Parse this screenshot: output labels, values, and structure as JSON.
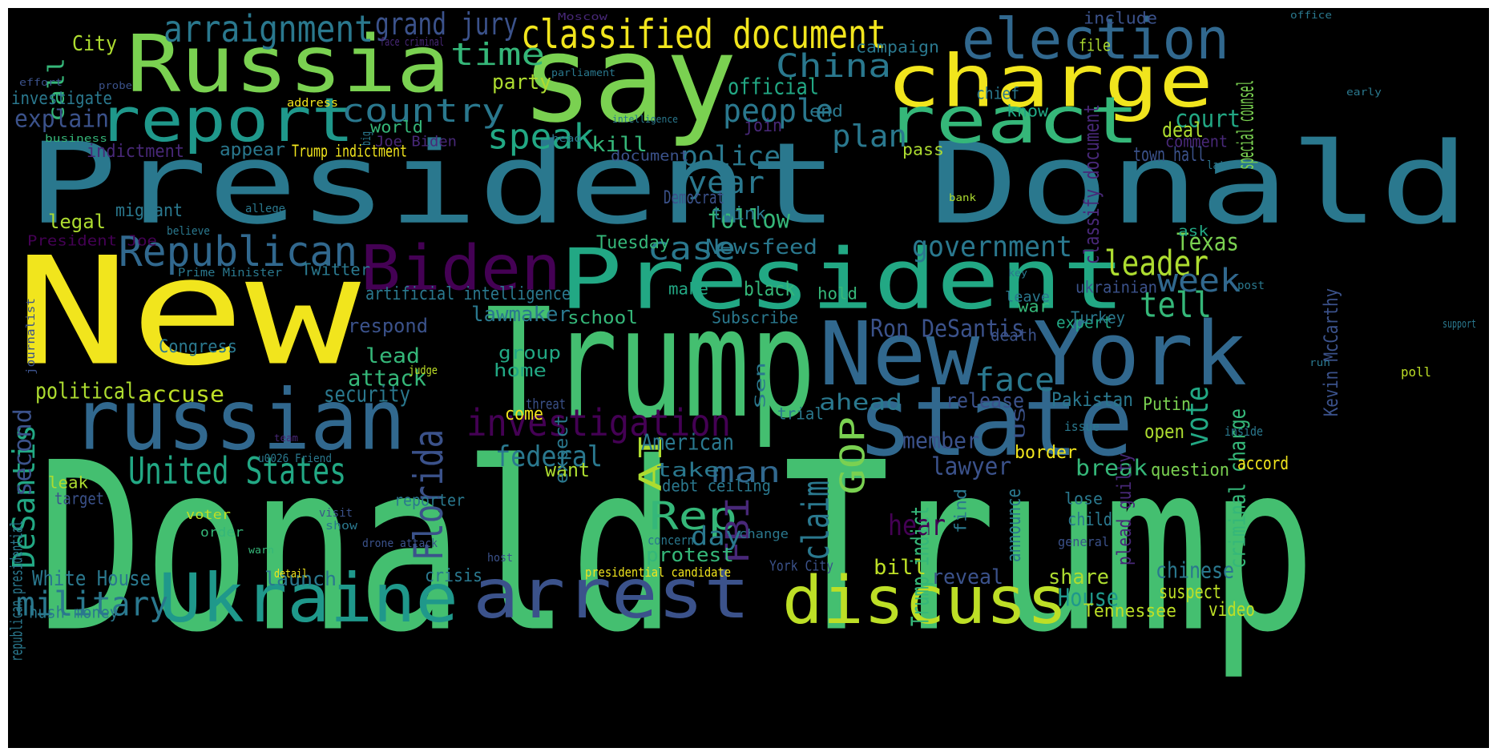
{
  "background": "#000000",
  "palette": {
    "yellow": "#f1e51d",
    "lime": "#addc30",
    "lightgreen": "#7ad151",
    "green": "#44bf70",
    "seagreen": "#35b779",
    "teal": "#22a884",
    "cyan": "#1f988b",
    "blue": "#2a788e",
    "steelblue": "#31688e",
    "indigo": "#3b528b",
    "slate": "#414487",
    "purple": "#440154",
    "violet": "#482878"
  },
  "words": [
    {
      "text": "New",
      "color": "#f1e51d"
    },
    {
      "text": "President Donald",
      "color": "#2a788e"
    },
    {
      "text": "Donald Trump",
      "color": "#44bf70"
    },
    {
      "text": "say",
      "color": "#7ad151"
    },
    {
      "text": "Trump",
      "color": "#44bf70"
    },
    {
      "text": "Russia",
      "color": "#7ad151"
    },
    {
      "text": "President",
      "color": "#22a884"
    },
    {
      "text": "charge",
      "color": "#f1e51d"
    },
    {
      "text": "New York",
      "color": "#31688e"
    },
    {
      "text": "state",
      "color": "#31688e"
    },
    {
      "text": "russian",
      "color": "#31688e"
    },
    {
      "text": "arrest",
      "color": "#3b528b"
    },
    {
      "text": "Ukraine",
      "color": "#1f988b"
    },
    {
      "text": "discuss",
      "color": "#bddf26"
    },
    {
      "text": "react",
      "color": "#35b779"
    },
    {
      "text": "report",
      "color": "#1f988b"
    },
    {
      "text": "election",
      "color": "#31688e"
    },
    {
      "text": "Biden",
      "color": "#440154"
    },
    {
      "text": "classified document",
      "color": "#f1e51d"
    },
    {
      "text": "arraignment",
      "color": "#2a788e"
    },
    {
      "text": "grand jury",
      "color": "#3b528b"
    },
    {
      "text": "time",
      "color": "#35b779"
    },
    {
      "text": "China",
      "color": "#2a788e"
    },
    {
      "text": "Republican",
      "color": "#31688e"
    },
    {
      "text": "country",
      "color": "#2a788e"
    },
    {
      "text": "speak",
      "color": "#22a884"
    },
    {
      "text": "people",
      "color": "#2a788e"
    },
    {
      "text": "official",
      "color": "#22a884"
    },
    {
      "text": "investigation",
      "color": "#440154"
    },
    {
      "text": "Florida",
      "color": "#3b528b"
    },
    {
      "text": "United States",
      "color": "#22a884"
    },
    {
      "text": "military",
      "color": "#2a788e"
    },
    {
      "text": "federal",
      "color": "#2a788e"
    },
    {
      "text": "government",
      "color": "#2a788e"
    },
    {
      "text": "leader",
      "color": "#addc30"
    },
    {
      "text": "week",
      "color": "#31688e"
    },
    {
      "text": "tell",
      "color": "#35b779"
    },
    {
      "text": "face",
      "color": "#2a788e"
    },
    {
      "text": "vote",
      "color": "#22a884"
    },
    {
      "text": "Rep",
      "color": "#35b779"
    },
    {
      "text": "claim",
      "color": "#2a788e"
    },
    {
      "text": "FBI",
      "color": "#482878"
    },
    {
      "text": "GOP",
      "color": "#7ad151"
    },
    {
      "text": "AI",
      "color": "#addc30"
    },
    {
      "text": "man",
      "color": "#31688e"
    },
    {
      "text": "case",
      "color": "#2a788e"
    },
    {
      "text": "year",
      "color": "#2a788e"
    },
    {
      "text": "police",
      "color": "#2a788e"
    },
    {
      "text": "follow",
      "color": "#35b779"
    },
    {
      "text": "plan",
      "color": "#2a788e"
    },
    {
      "text": "call",
      "color": "#35b779"
    },
    {
      "text": "City",
      "color": "#addc30"
    },
    {
      "text": "explain",
      "color": "#3b528b"
    },
    {
      "text": "investigate",
      "color": "#2a788e"
    },
    {
      "text": "indictment",
      "color": "#482878"
    },
    {
      "text": "appear",
      "color": "#2a788e"
    },
    {
      "text": "Trump indictment",
      "color": "#f1e51d"
    },
    {
      "text": "Joe Biden",
      "color": "#482878"
    },
    {
      "text": "world",
      "color": "#35b779"
    },
    {
      "text": "party",
      "color": "#addc30"
    },
    {
      "text": "kill",
      "color": "#35b779"
    },
    {
      "text": "Newsfeed",
      "color": "#2a788e"
    },
    {
      "text": "Texas",
      "color": "#7ad151"
    },
    {
      "text": "court",
      "color": "#22a884"
    },
    {
      "text": "deal",
      "color": "#addc30"
    },
    {
      "text": "special counsel",
      "color": "#7ad151"
    },
    {
      "text": "town hall",
      "color": "#3b528b"
    },
    {
      "text": "comment",
      "color": "#482878"
    },
    {
      "text": "classify document",
      "color": "#482878"
    },
    {
      "text": "criminal charge",
      "color": "#35b779"
    },
    {
      "text": "Ron DeSantis",
      "color": "#3b528b"
    },
    {
      "text": "ahead",
      "color": "#2a788e"
    },
    {
      "text": "release",
      "color": "#3b528b"
    },
    {
      "text": "Pakistan",
      "color": "#2a788e"
    },
    {
      "text": "Putin",
      "color": "#7ad151"
    },
    {
      "text": "open",
      "color": "#addc30"
    },
    {
      "text": "question",
      "color": "#7ad151"
    },
    {
      "text": "break",
      "color": "#35b779"
    },
    {
      "text": "lawyer",
      "color": "#3b528b"
    },
    {
      "text": "member",
      "color": "#3b528b"
    },
    {
      "text": "American",
      "color": "#2a788e"
    },
    {
      "text": "take",
      "color": "#2a788e"
    },
    {
      "text": "debt ceiling",
      "color": "#2a788e"
    },
    {
      "text": "want",
      "color": "#addc30"
    },
    {
      "text": "lead",
      "color": "#35b779"
    },
    {
      "text": "attack",
      "color": "#35b779"
    },
    {
      "text": "security",
      "color": "#2a788e"
    },
    {
      "text": "accuse",
      "color": "#bddf26"
    },
    {
      "text": "political",
      "color": "#addc30"
    },
    {
      "text": "Congress",
      "color": "#2a788e"
    },
    {
      "text": "respond",
      "color": "#3b528b"
    },
    {
      "text": "lawmaker",
      "color": "#2a788e"
    },
    {
      "text": "artificial intelligence",
      "color": "#2a788e"
    },
    {
      "text": "Twitter",
      "color": "#2a788e"
    },
    {
      "text": "legal",
      "color": "#addc30"
    },
    {
      "text": "migrant",
      "color": "#2a788e"
    },
    {
      "text": "Tuesday",
      "color": "#35b779"
    },
    {
      "text": "Democrat",
      "color": "#3b528b"
    },
    {
      "text": "think",
      "color": "#2a788e"
    },
    {
      "text": "black",
      "color": "#35b779"
    },
    {
      "text": "make",
      "color": "#22a884"
    },
    {
      "text": "school",
      "color": "#35b779"
    },
    {
      "text": "Subscribe",
      "color": "#2a788e"
    },
    {
      "text": "group",
      "color": "#22a884"
    },
    {
      "text": "home",
      "color": "#22a884"
    },
    {
      "text": "come",
      "color": "#f1e51d"
    },
    {
      "text": "trial",
      "color": "#2a788e"
    },
    {
      "text": "hold",
      "color": "#35b779"
    },
    {
      "text": "war",
      "color": "#35b779"
    },
    {
      "text": "ukrainian",
      "color": "#3b528b"
    },
    {
      "text": "expert",
      "color": "#22a884"
    },
    {
      "text": "Turkey",
      "color": "#2a788e"
    },
    {
      "text": "death",
      "color": "#3b528b"
    },
    {
      "text": "House",
      "color": "#1f988b"
    },
    {
      "text": "share",
      "color": "#addc30"
    },
    {
      "text": "chinese",
      "color": "#2a788e"
    },
    {
      "text": "suspect",
      "color": "#bddf26"
    },
    {
      "text": "video",
      "color": "#bddf26"
    },
    {
      "text": "Tennessee",
      "color": "#bddf26"
    },
    {
      "text": "reveal",
      "color": "#3b528b"
    },
    {
      "text": "bill",
      "color": "#bddf26"
    },
    {
      "text": "hear",
      "color": "#440154"
    },
    {
      "text": "day",
      "color": "#2a788e"
    },
    {
      "text": "protest",
      "color": "#35b779"
    },
    {
      "text": "crisis",
      "color": "#2a788e"
    },
    {
      "text": "launch",
      "color": "#2a788e"
    },
    {
      "text": "White House",
      "color": "#2a788e"
    },
    {
      "text": "hush money",
      "color": "#2a788e"
    },
    {
      "text": "DeSantis",
      "color": "#22a884"
    },
    {
      "text": "leak",
      "color": "#addc30"
    },
    {
      "text": "target",
      "color": "#3b528b"
    },
    {
      "text": "reporter",
      "color": "#2a788e"
    },
    {
      "text": "voter",
      "color": "#bddf26"
    },
    {
      "text": "order",
      "color": "#35b779"
    },
    {
      "text": "visit",
      "color": "#3b528b"
    },
    {
      "text": "show",
      "color": "#2a788e"
    },
    {
      "text": "concern",
      "color": "#2a788e"
    },
    {
      "text": "change",
      "color": "#2a788e"
    },
    {
      "text": "presidential candidate",
      "color": "#f1e51d"
    },
    {
      "text": "detail",
      "color": "#f1e51d"
    },
    {
      "text": "general",
      "color": "#3b528b"
    },
    {
      "text": "child",
      "color": "#2a788e"
    },
    {
      "text": "lose",
      "color": "#2a788e"
    },
    {
      "text": "find",
      "color": "#2a788e"
    },
    {
      "text": "announce",
      "color": "#2a788e"
    },
    {
      "text": "plead guilty",
      "color": "#482878"
    },
    {
      "text": "Trump indict",
      "color": "#35b779"
    },
    {
      "text": "border",
      "color": "#f1e51d"
    },
    {
      "text": "accord",
      "color": "#f1e51d"
    },
    {
      "text": "issue",
      "color": "#2a788e"
    },
    {
      "text": "inside",
      "color": "#2a788e"
    },
    {
      "text": "poll",
      "color": "#bddf26"
    },
    {
      "text": "support",
      "color": "#2a788e"
    },
    {
      "text": "second",
      "color": "#3b528b"
    },
    {
      "text": "republican presidential",
      "color": "#2a788e"
    },
    {
      "text": "Kevin McCarthy",
      "color": "#3b528b"
    },
    {
      "text": "journalist",
      "color": "#3b528b"
    },
    {
      "text": "President Joe",
      "color": "#440154"
    },
    {
      "text": "Prime Minister",
      "color": "#2a788e"
    },
    {
      "text": "believe",
      "color": "#2a788e"
    },
    {
      "text": "allege",
      "color": "#2a788e"
    },
    {
      "text": "business",
      "color": "#35b779"
    },
    {
      "text": "effort",
      "color": "#3b528b"
    },
    {
      "text": "probe",
      "color": "#3b528b"
    },
    {
      "text": "address",
      "color": "#f1e51d"
    },
    {
      "text": "face criminal",
      "color": "#482878"
    },
    {
      "text": "Moscow",
      "color": "#482878"
    },
    {
      "text": "parliament",
      "color": "#2a788e"
    },
    {
      "text": "intelligence",
      "color": "#2a788e"
    },
    {
      "text": "head",
      "color": "#2a788e"
    },
    {
      "text": "big",
      "color": "#2a788e"
    },
    {
      "text": "join",
      "color": "#482878"
    },
    {
      "text": "document",
      "color": "#3b528b"
    },
    {
      "text": "end",
      "color": "#2a788e"
    },
    {
      "text": "include",
      "color": "#3b528b"
    },
    {
      "text": "campaign",
      "color": "#2a788e"
    },
    {
      "text": "file",
      "color": "#addc30"
    },
    {
      "text": "office",
      "color": "#2a788e"
    },
    {
      "text": "chief",
      "color": "#2a788e"
    },
    {
      "text": "early",
      "color": "#2a788e"
    },
    {
      "text": "know",
      "color": "#22a884"
    },
    {
      "text": "pass",
      "color": "#addc30"
    },
    {
      "text": "late",
      "color": "#2a788e"
    },
    {
      "text": "bank",
      "color": "#addc30"
    },
    {
      "text": "ask",
      "color": "#22a884"
    },
    {
      "text": "key",
      "color": "#2a788e"
    },
    {
      "text": "leave",
      "color": "#2a788e"
    },
    {
      "text": "post",
      "color": "#2a788e"
    },
    {
      "text": "run",
      "color": "#2a788e"
    },
    {
      "text": "judge",
      "color": "#bddf26"
    },
    {
      "text": "threat",
      "color": "#3b528b"
    },
    {
      "text": "expect",
      "color": "#2a788e"
    },
    {
      "text": "Sen",
      "color": "#2a788e"
    },
    {
      "text": "u0026 Friend",
      "color": "#2a788e"
    },
    {
      "text": "team",
      "color": "#482878"
    },
    {
      "text": "drone attack",
      "color": "#3b528b"
    },
    {
      "text": "host",
      "color": "#3b528b"
    },
    {
      "text": "York City",
      "color": "#3b528b"
    },
    {
      "text": "warn",
      "color": "#35b779"
    },
    {
      "text": "US",
      "color": "#3b528b"
    }
  ]
}
